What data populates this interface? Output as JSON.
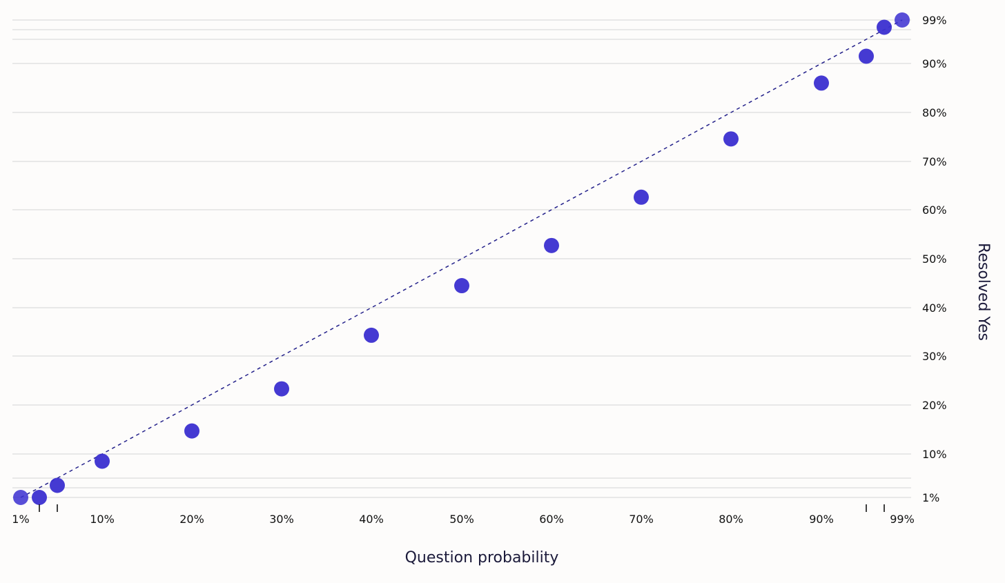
{
  "chart_data": {
    "type": "scatter",
    "xlabel": "Question probability",
    "ylabel": "Resolved Yes",
    "xlim": [
      0.01,
      0.99
    ],
    "ylim": [
      0.01,
      0.99
    ],
    "grid": true,
    "x_ticks": [
      {
        "value": 0.01,
        "label": "1%"
      },
      {
        "value": 0.03,
        "label": ""
      },
      {
        "value": 0.05,
        "label": ""
      },
      {
        "value": 0.1,
        "label": "10%"
      },
      {
        "value": 0.2,
        "label": "20%"
      },
      {
        "value": 0.3,
        "label": "30%"
      },
      {
        "value": 0.4,
        "label": "40%"
      },
      {
        "value": 0.5,
        "label": "50%"
      },
      {
        "value": 0.6,
        "label": "60%"
      },
      {
        "value": 0.7,
        "label": "70%"
      },
      {
        "value": 0.8,
        "label": "80%"
      },
      {
        "value": 0.9,
        "label": "90%"
      },
      {
        "value": 0.95,
        "label": ""
      },
      {
        "value": 0.97,
        "label": ""
      },
      {
        "value": 0.99,
        "label": "99%"
      }
    ],
    "y_ticks": [
      {
        "value": 0.01,
        "label": "1%"
      },
      {
        "value": 0.03,
        "label": ""
      },
      {
        "value": 0.05,
        "label": ""
      },
      {
        "value": 0.1,
        "label": "10%"
      },
      {
        "value": 0.2,
        "label": "20%"
      },
      {
        "value": 0.3,
        "label": "30%"
      },
      {
        "value": 0.4,
        "label": "40%"
      },
      {
        "value": 0.5,
        "label": "50%"
      },
      {
        "value": 0.6,
        "label": "60%"
      },
      {
        "value": 0.7,
        "label": "70%"
      },
      {
        "value": 0.8,
        "label": "80%"
      },
      {
        "value": 0.9,
        "label": "90%"
      },
      {
        "value": 0.95,
        "label": ""
      },
      {
        "value": 0.97,
        "label": ""
      },
      {
        "value": 0.99,
        "label": "99%"
      }
    ],
    "reference_line": {
      "from": [
        0.01,
        0.01
      ],
      "to": [
        0.99,
        0.99
      ],
      "style": "dashed",
      "color": "#23208a"
    },
    "series": [
      {
        "color": "#3b2fd0",
        "points": [
          {
            "x": 0.01,
            "y": 0.01
          },
          {
            "x": 0.03,
            "y": 0.01
          },
          {
            "x": 0.05,
            "y": 0.035
          },
          {
            "x": 0.1,
            "y": 0.085
          },
          {
            "x": 0.2,
            "y": 0.147
          },
          {
            "x": 0.3,
            "y": 0.233
          },
          {
            "x": 0.4,
            "y": 0.343
          },
          {
            "x": 0.5,
            "y": 0.445
          },
          {
            "x": 0.6,
            "y": 0.527
          },
          {
            "x": 0.7,
            "y": 0.626
          },
          {
            "x": 0.8,
            "y": 0.746
          },
          {
            "x": 0.9,
            "y": 0.86
          },
          {
            "x": 0.95,
            "y": 0.915
          },
          {
            "x": 0.97,
            "y": 0.975
          },
          {
            "x": 0.99,
            "y": 0.99
          }
        ]
      }
    ]
  }
}
